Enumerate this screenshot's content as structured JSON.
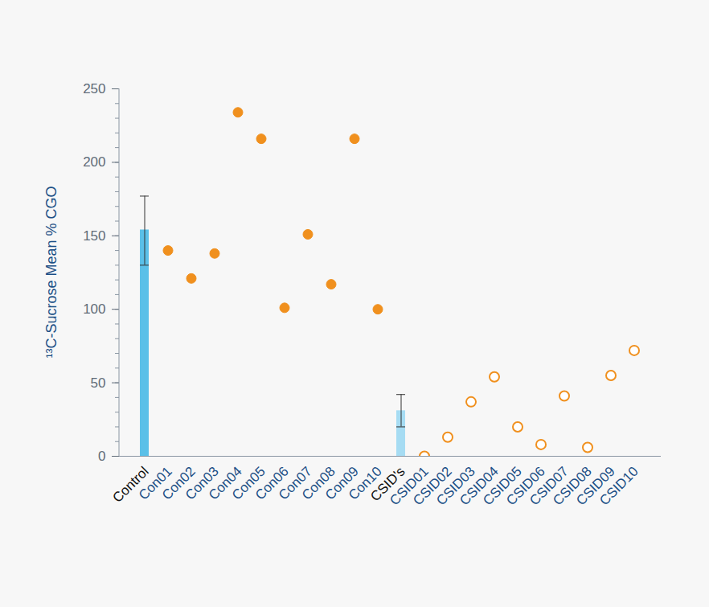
{
  "chart_data": {
    "type": "bar",
    "y_label": "¹³C-Sucrose Mean % CGO",
    "categories": [
      "Control",
      "Con01",
      "Con02",
      "Con03",
      "Con04",
      "Con05",
      "Con06",
      "Con07",
      "Con08",
      "Con09",
      "Con10",
      "CSID's",
      "CSID01",
      "CSID02",
      "CSID03",
      "CSID04",
      "CSID05",
      "CSID06",
      "CSID07",
      "CSID08",
      "CSID09",
      "CSID10"
    ],
    "series": [
      {
        "type": "bar",
        "colors": [
          "#5bc0e8",
          null,
          null,
          null,
          null,
          null,
          null,
          null,
          null,
          null,
          null,
          "#a6dcf3",
          null,
          null,
          null,
          null,
          null,
          null,
          null,
          null,
          null,
          null
        ],
        "values": [
          154,
          null,
          null,
          null,
          null,
          null,
          null,
          null,
          null,
          null,
          null,
          31,
          null,
          null,
          null,
          null,
          null,
          null,
          null,
          null,
          null,
          null
        ],
        "error_low": [
          130,
          null,
          null,
          null,
          null,
          null,
          null,
          null,
          null,
          null,
          null,
          20,
          null,
          null,
          null,
          null,
          null,
          null,
          null,
          null,
          null,
          null
        ],
        "error_high": [
          177,
          null,
          null,
          null,
          null,
          null,
          null,
          null,
          null,
          null,
          null,
          42,
          null,
          null,
          null,
          null,
          null,
          null,
          null,
          null,
          null,
          null
        ]
      },
      {
        "type": "scatter",
        "marker": "filled circle",
        "color": "#f0901e",
        "values": [
          null,
          140,
          121,
          138,
          234,
          216,
          101,
          151,
          117,
          216,
          100,
          null,
          null,
          null,
          null,
          null,
          null,
          null,
          null,
          null,
          null,
          null
        ]
      },
      {
        "type": "scatter",
        "marker": "open circle",
        "color": "#f0901e",
        "values": [
          null,
          null,
          null,
          null,
          null,
          null,
          null,
          null,
          null,
          null,
          null,
          null,
          0,
          13,
          37,
          54,
          20,
          8,
          41,
          6,
          55,
          72
        ]
      }
    ],
    "ylim": [
      0,
      250
    ],
    "yticks": [
      0,
      50,
      100,
      150,
      200,
      250
    ],
    "grid": false
  }
}
